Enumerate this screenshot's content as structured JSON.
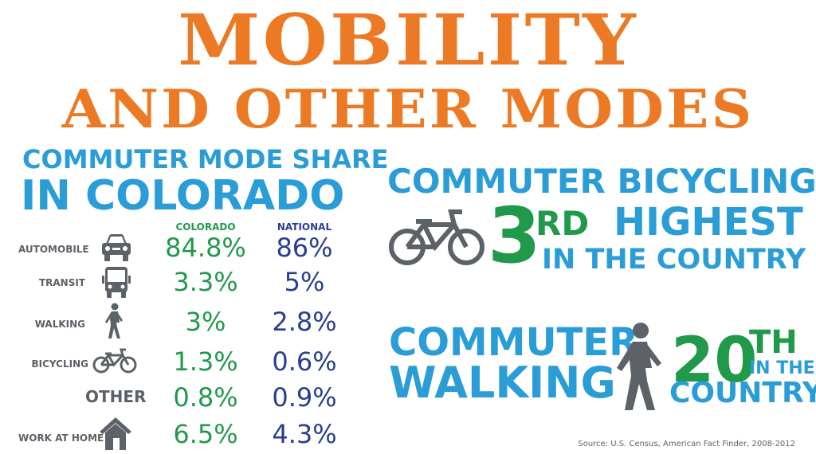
{
  "title": {
    "line1": "MOBILITY",
    "line2": "AND OTHER MODES"
  },
  "left": {
    "heading_line1": "COMMUTER MODE SHARE",
    "heading_line2": "IN COLORADO",
    "col_colorado": "COLORADO",
    "col_national": "NATIONAL",
    "rows": [
      {
        "label": "AUTOMOBILE",
        "icon": "car-icon",
        "colorado": "84.8%",
        "national": "86%"
      },
      {
        "label": "TRANSIT",
        "icon": "bus-icon",
        "colorado": "3.3%",
        "national": "5%"
      },
      {
        "label": "WALKING",
        "icon": "walking-person-icon",
        "colorado": "3%",
        "national": "2.8%"
      },
      {
        "label": "BICYCLING",
        "icon": "bicycle-icon",
        "colorado": "1.3%",
        "national": "0.6%"
      },
      {
        "label": "OTHER",
        "icon": "",
        "colorado": "0.8%",
        "national": "0.9%"
      },
      {
        "label": "WORK AT HOME",
        "icon": "house-icon",
        "colorado": "6.5%",
        "national": "4.3%"
      }
    ]
  },
  "bicycling": {
    "heading": "COMMUTER BICYCLING",
    "rank_number": "3",
    "rank_suffix": "RD",
    "rank_text": "HIGHEST",
    "rank_sub": "IN THE COUNTRY",
    "icon": "bicycle-icon"
  },
  "walking": {
    "line1": "COMMUTER",
    "line2": "WALKING",
    "rank_number": "20",
    "rank_suffix": "TH",
    "rank_sub1": "IN THE",
    "rank_sub2": "COUNTRY",
    "icon": "walking-person-icon"
  },
  "source": "Source: U.S. Census, American Fact Finder, 2008-2012",
  "colors": {
    "orange": "#ec7a24",
    "blue": "#2a9dd7",
    "green": "#21994a",
    "navy": "#283f8f",
    "gray": "#5d6268"
  }
}
